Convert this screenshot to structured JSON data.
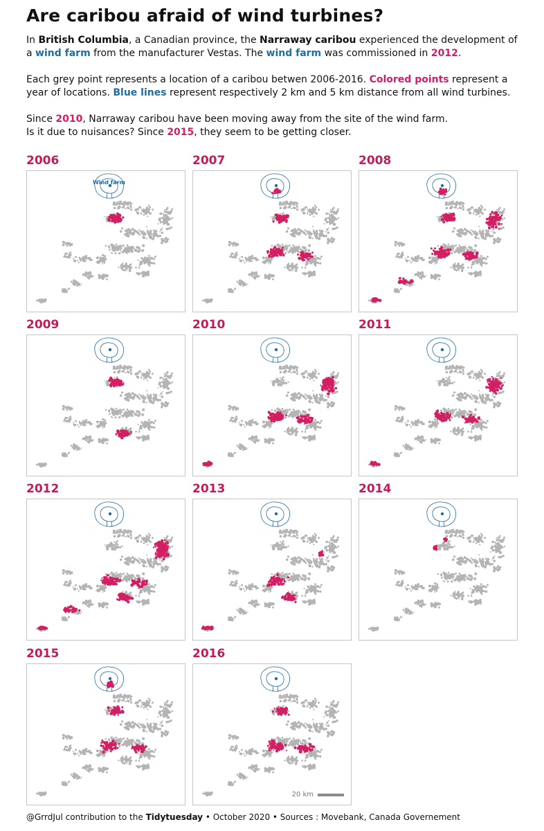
{
  "title": "Are caribou afraid of wind turbines?",
  "intro": {
    "p1": {
      "t1": "In ",
      "province": "British Columbia",
      "t2": ", a Canadian province, the ",
      "herd": "Narraway caribou",
      "t3": " experienced the development of a ",
      "wind1": "wind farm",
      "t4": " from the manufacturer Vestas. The ",
      "wind2": "wind farm",
      "t5": " was commissioned in ",
      "year": "2012",
      "t6": "."
    },
    "p2": {
      "t1": "Each grey point represents a location of a caribou betwen 2006-2016. ",
      "colored": "Colored points",
      "t2": " represent a year of locations. ",
      "blue": "Blue lines",
      "t3": " represent respectively 2 km and 5 km distance from all wind turbines."
    },
    "p3": {
      "t1": "Since ",
      "y1": "2010",
      "t2": ", Narraway caribou have been moving away from the site of the wind farm.",
      "t3": "Is it due to nuisances? Since ",
      "y2": "2015",
      "t4": ", they seem to be getting closer."
    }
  },
  "colors": {
    "grey_points": "#b4b4b4",
    "year_points": "#d21f64",
    "buffer_lines": "#1f6da3",
    "year_label": "#c8185c"
  },
  "wind_farm_label": "Wind farm",
  "scale_bar": {
    "label": "20 km"
  },
  "panels": [
    {
      "year": "2006",
      "highlight_regions": [
        "north-center"
      ]
    },
    {
      "year": "2007",
      "highlight_regions": [
        "near-farm",
        "north-center",
        "center-west",
        "center-east"
      ]
    },
    {
      "year": "2008",
      "highlight_regions": [
        "near-farm",
        "north-center",
        "north-east",
        "center-west",
        "center-east",
        "south-west-chain",
        "south-west-tip"
      ]
    },
    {
      "year": "2009",
      "highlight_regions": [
        "north-center",
        "south-center"
      ]
    },
    {
      "year": "2010",
      "highlight_regions": [
        "north-east",
        "center-east",
        "center-west",
        "south-west-tip"
      ]
    },
    {
      "year": "2011",
      "highlight_regions": [
        "north-east",
        "center-east",
        "center-west",
        "south-west-tip"
      ]
    },
    {
      "year": "2012",
      "highlight_regions": [
        "north-east",
        "center-west",
        "center-east",
        "south-center",
        "south-west-chain",
        "south-west-tip"
      ]
    },
    {
      "year": "2013",
      "highlight_regions": [
        "east-spot",
        "center-west",
        "south-center",
        "south-west-tip"
      ]
    },
    {
      "year": "2014",
      "highlight_regions": [
        "north-center-small",
        "center-west-small"
      ]
    },
    {
      "year": "2015",
      "highlight_regions": [
        "near-farm",
        "north-center",
        "center-west",
        "center-east"
      ]
    },
    {
      "year": "2016",
      "highlight_regions": [
        "north-center",
        "center-west",
        "center-east"
      ]
    }
  ],
  "footer": {
    "t1": "@GrrdJul contribution to the ",
    "tidy": "Tidytuesday",
    "t2": " • October 2020 • Sources : Movebank, Canada Governement"
  }
}
